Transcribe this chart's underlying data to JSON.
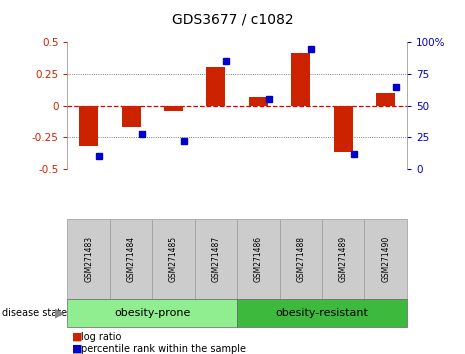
{
  "title": "GDS3677 / c1082",
  "samples": [
    "GSM271483",
    "GSM271484",
    "GSM271485",
    "GSM271487",
    "GSM271486",
    "GSM271488",
    "GSM271489",
    "GSM271490"
  ],
  "log_ratio": [
    -0.32,
    -0.17,
    -0.04,
    0.31,
    0.07,
    0.42,
    -0.37,
    0.1
  ],
  "percentile_rank": [
    10,
    28,
    22,
    85,
    55,
    95,
    12,
    65
  ],
  "groups": [
    {
      "label": "obesity-prone",
      "indices": [
        0,
        1,
        2,
        3
      ],
      "color": "#90ee90"
    },
    {
      "label": "obesity-resistant",
      "indices": [
        4,
        5,
        6,
        7
      ],
      "color": "#3dba3d"
    }
  ],
  "bar_color_red": "#cc2200",
  "bar_color_blue": "#0000cc",
  "ylim_left": [
    -0.5,
    0.5
  ],
  "ylim_right": [
    0,
    100
  ],
  "yticks_left": [
    -0.5,
    -0.25,
    0,
    0.25,
    0.5
  ],
  "yticks_right": [
    0,
    25,
    50,
    75,
    100
  ],
  "hline_color": "#dd0000",
  "dotted_vals": [
    -0.25,
    0.25
  ],
  "bg_color": "#ffffff",
  "bar_width": 0.45,
  "tick_label_bg": "#cccccc",
  "disease_state_label": "disease state",
  "legend_log_ratio": "log ratio",
  "legend_percentile": "percentile rank within the sample"
}
